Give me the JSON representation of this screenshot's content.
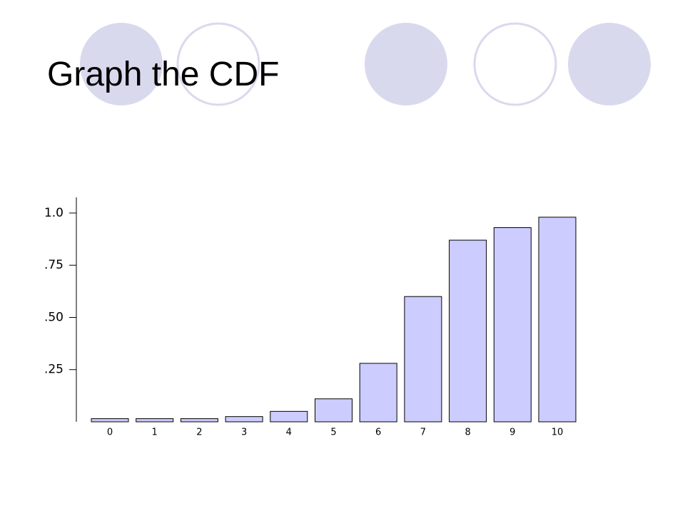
{
  "chart_data": {
    "type": "bar",
    "title": "Graph the CDF",
    "categories": [
      "0",
      "1",
      "2",
      "3",
      "4",
      "5",
      "6",
      "7",
      "8",
      "9",
      "10"
    ],
    "values": [
      0.015,
      0.015,
      0.015,
      0.025,
      0.05,
      0.11,
      0.28,
      0.6,
      0.87,
      0.93,
      0.98
    ],
    "color": "#ccccff",
    "ylim": [
      0,
      1.075
    ],
    "yticks": [
      {
        "value": 0.25,
        "label": ".25"
      },
      {
        "value": 0.5,
        "label": ".50"
      },
      {
        "value": 0.75,
        "label": ".75"
      },
      {
        "value": 1,
        "label": "1.0"
      }
    ],
    "grid": false
  }
}
